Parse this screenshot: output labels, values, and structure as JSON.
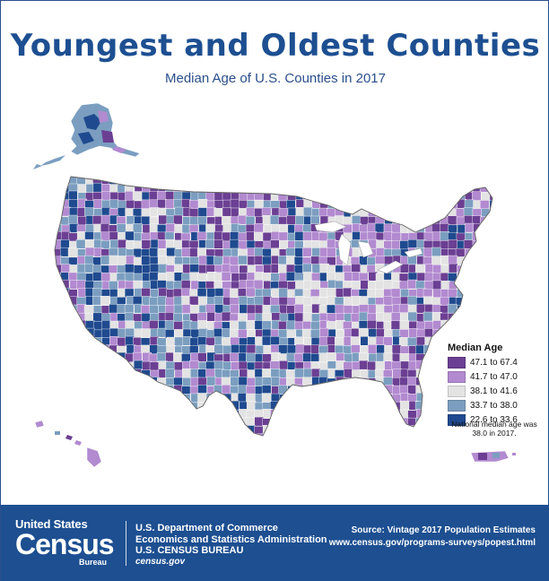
{
  "header": {
    "title": "Youngest and Oldest Counties",
    "subtitle": "Median Age of U.S. Counties in 2017"
  },
  "legend": {
    "title": "Median Age",
    "items": [
      {
        "label": "47.1 to 67.4",
        "color": "#6b3f93"
      },
      {
        "label": "41.7 to 47.0",
        "color": "#b28ad0"
      },
      {
        "label": "38.1 to 41.6",
        "color": "#e3e3e3"
      },
      {
        "label": "33.7 to 38.0",
        "color": "#7b9ec0"
      },
      {
        "label": "22.6 to 33.6",
        "color": "#1f4a8f"
      }
    ],
    "note": "National median age was 38.0 in 2017."
  },
  "map": {
    "regions": [
      "contiguous-us",
      "alaska",
      "hawaii",
      "puerto-rico"
    ],
    "colors": {
      "oldest": "#6b3f93",
      "older": "#b28ad0",
      "middle": "#e3e3e3",
      "younger": "#7b9ec0",
      "youngest": "#1f4a8f"
    }
  },
  "footer": {
    "logo_top": "United States",
    "logo_main": "Census",
    "logo_bottom": "Bureau",
    "dept_line1": "U.S. Department of Commerce",
    "dept_line2": "Economics and Statistics Administration",
    "dept_line3": "U.S. CENSUS BUREAU",
    "dept_line4": "census.gov",
    "source_line1": "Source: Vintage 2017 Population Estimates",
    "source_line2": "www.census.gov/programs-surveys/popest.html",
    "bg_color": "#1d4f91"
  }
}
